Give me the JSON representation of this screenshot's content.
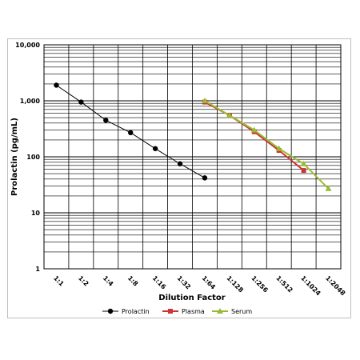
{
  "chart_data": {
    "type": "line",
    "title": "",
    "xlabel": "Dilution Factor",
    "ylabel": "Prolactin (pg/mL)",
    "y_scale": "log",
    "ylim": [
      1,
      10000
    ],
    "grid": true,
    "legend_position": "bottom",
    "categories": [
      "1:1",
      "1:2",
      "1:4",
      "1:8",
      "1:16",
      "1:32",
      "1:64",
      "1:128",
      "1:256",
      "1:512",
      "1:1024",
      "1:2048"
    ],
    "y_ticks": [
      {
        "value": 1,
        "label": "1"
      },
      {
        "value": 10,
        "label": "10"
      },
      {
        "value": 100,
        "label": "100"
      },
      {
        "value": 1000,
        "label": "1,000"
      },
      {
        "value": 10000,
        "label": "10,000"
      }
    ],
    "series": [
      {
        "name": "Prolactin",
        "color": "#000000",
        "marker": "circle",
        "values": [
          1900,
          950,
          450,
          270,
          140,
          75,
          42,
          null,
          null,
          null,
          null,
          null
        ]
      },
      {
        "name": "Plasma",
        "color": "#cc3333",
        "marker": "square",
        "values": [
          null,
          null,
          null,
          null,
          null,
          null,
          950,
          550,
          280,
          130,
          57,
          null
        ]
      },
      {
        "name": "Serum",
        "color": "#99bb33",
        "marker": "triangle",
        "values": [
          null,
          null,
          null,
          null,
          null,
          null,
          1000,
          550,
          300,
          140,
          75,
          27
        ]
      }
    ]
  }
}
